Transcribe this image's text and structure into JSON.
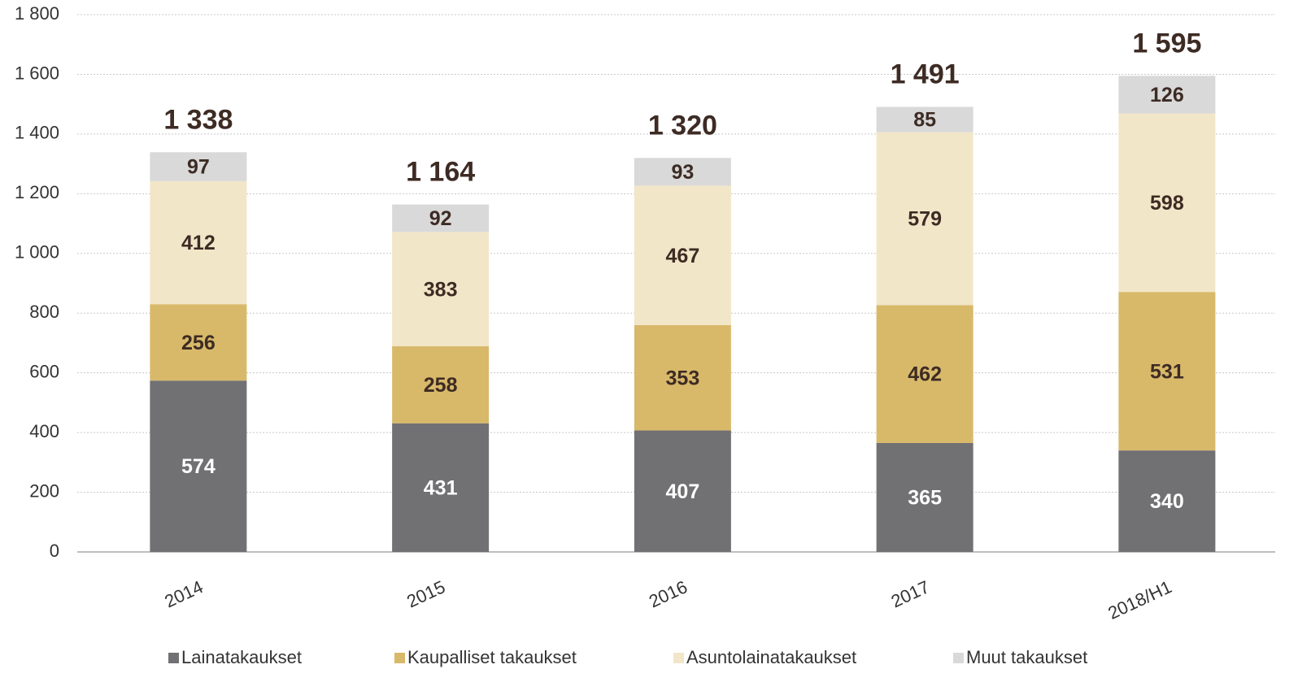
{
  "chart_data": {
    "type": "stacked_bar",
    "categories": [
      "2014",
      "2015",
      "2016",
      "2017",
      "2018/H1"
    ],
    "series": [
      {
        "name": "Lainatakaukset",
        "color": "#717073",
        "values": [
          574,
          431,
          407,
          365,
          340
        ]
      },
      {
        "name": "Kaupalliset takaukset",
        "color": "#d8b96a",
        "values": [
          256,
          258,
          353,
          462,
          531
        ]
      },
      {
        "name": "Asuntolainatakaukset",
        "color": "#f2e6c8",
        "values": [
          412,
          383,
          467,
          579,
          598
        ]
      },
      {
        "name": "Muut takaukset",
        "color": "#d9d9d9",
        "values": [
          97,
          92,
          93,
          85,
          126
        ]
      }
    ],
    "totals": [
      1338,
      1164,
      1320,
      1491,
      1595
    ],
    "total_labels": [
      "1 338",
      "1 164",
      "1 320",
      "1 491",
      "1 595"
    ],
    "ylim": [
      0,
      1800
    ],
    "yticks": [
      0,
      200,
      400,
      600,
      800,
      {
        "value": 1000,
        "label": "1 000"
      },
      {
        "value": 1200,
        "label": "1 200"
      },
      {
        "value": 1400,
        "label": "1 400"
      },
      {
        "value": 1600,
        "label": "1 600"
      },
      {
        "value": 1800,
        "label": "1 800"
      }
    ],
    "grid": true,
    "legend": "bottom"
  }
}
